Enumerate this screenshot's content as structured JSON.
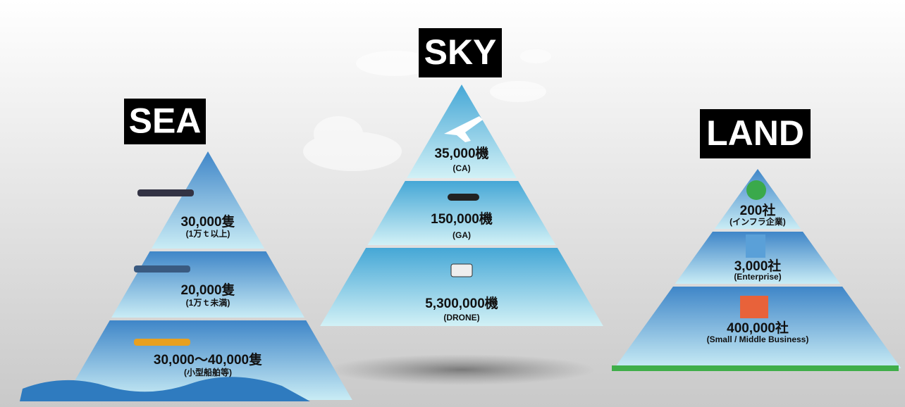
{
  "pyramids": [
    {
      "title": "SEA",
      "tiers": [
        {
          "count": "30,000隻",
          "note": "(1万ｔ以上)"
        },
        {
          "count": "20,000隻",
          "note": "(1万ｔ未満)"
        },
        {
          "count": "30,000〜40,000隻",
          "note": "(小型船舶等)"
        }
      ]
    },
    {
      "title": "SKY",
      "tiers": [
        {
          "count": "35,000機",
          "note": "(CA)"
        },
        {
          "count": "150,000機",
          "note": "(GA)"
        },
        {
          "count": "5,300,000機",
          "note": "(DRONE)"
        }
      ]
    },
    {
      "title": "LAND",
      "tiers": [
        {
          "count": "200社",
          "note": "(インフラ企業)"
        },
        {
          "count": "3,000社",
          "note": "(Enterprise)"
        },
        {
          "count": "400,000社",
          "note": "(Small / Middle Business)"
        }
      ]
    }
  ]
}
